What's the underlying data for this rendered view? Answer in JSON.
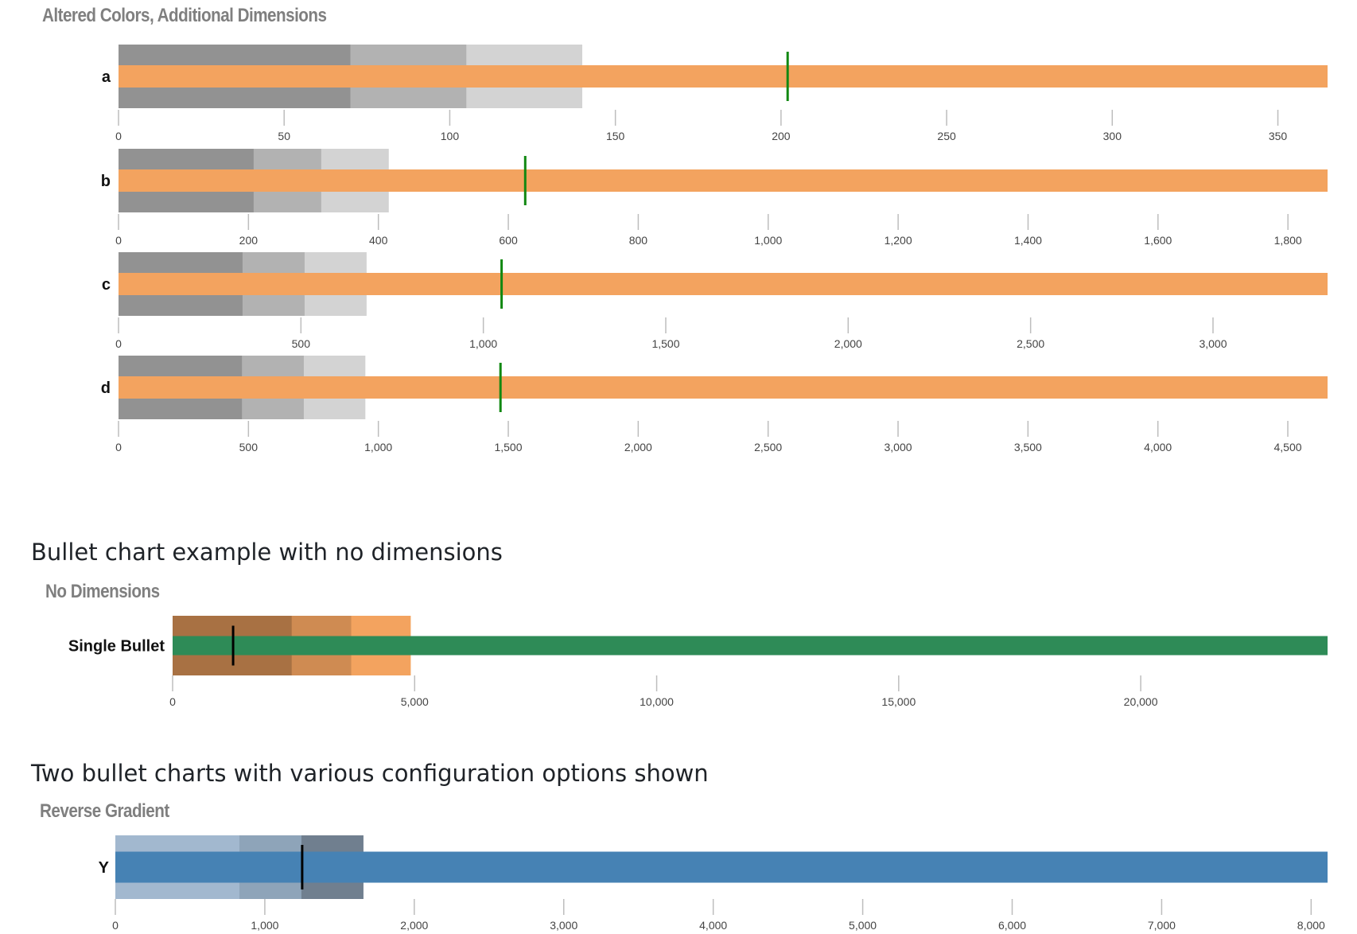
{
  "headings": {
    "no_dimensions": "Bullet chart example with no dimensions",
    "configuration": "Two bullet charts with various configuration options shown"
  },
  "chart_data": [
    {
      "type": "bullet",
      "title": "Altered Colors, Additional Dimensions",
      "colors": {
        "ranges": [
          "#929292",
          "#b2b2b2",
          "#d3d3d3"
        ],
        "measure": "#f3a35f",
        "marker": "#118811"
      },
      "rows": [
        {
          "label": "a",
          "ranges": [
            70,
            105,
            140
          ],
          "measure": 365,
          "marker": 202,
          "ticks": [
            0,
            50,
            100,
            150,
            200,
            250,
            300,
            350
          ],
          "tick_labels": [
            "0",
            "50",
            "100",
            "150",
            "200",
            "250",
            "300",
            "350"
          ],
          "xmax": 365
        },
        {
          "label": "b",
          "ranges": [
            208,
            312,
            416
          ],
          "measure": 1861,
          "marker": 626,
          "ticks": [
            0,
            200,
            400,
            600,
            800,
            1000,
            1200,
            1400,
            1600,
            1800
          ],
          "tick_labels": [
            "0",
            "200",
            "400",
            "600",
            "800",
            "1,000",
            "1,200",
            "1,400",
            "1,600",
            "1,800"
          ],
          "xmax": 1861
        },
        {
          "label": "c",
          "ranges": [
            340,
            510,
            680
          ],
          "measure": 3314,
          "marker": 1050,
          "ticks": [
            0,
            500,
            1000,
            1500,
            2000,
            2500,
            3000
          ],
          "tick_labels": [
            "0",
            "500",
            "1,000",
            "1,500",
            "2,000",
            "2,500",
            "3,000"
          ],
          "xmax": 3314
        },
        {
          "label": "d",
          "ranges": [
            475,
            713,
            950
          ],
          "measure": 4653,
          "marker": 1470,
          "ticks": [
            0,
            500,
            1000,
            1500,
            2000,
            2500,
            3000,
            3500,
            4000,
            4500
          ],
          "tick_labels": [
            "0",
            "500",
            "1,000",
            "1,500",
            "2,000",
            "2,500",
            "3,000",
            "3,500",
            "4,000",
            "4,500"
          ],
          "xmax": 4653
        }
      ]
    },
    {
      "type": "bullet",
      "title": "No Dimensions",
      "colors": {
        "ranges": [
          "#a87143",
          "#cf8b52",
          "#f3a35f"
        ],
        "measure": "#2e8b57",
        "marker": "#000000"
      },
      "rows": [
        {
          "label": "Single Bullet",
          "ranges": [
            2460,
            3690,
            4920
          ],
          "measure": 23860,
          "marker": 1250,
          "ticks": [
            0,
            5000,
            10000,
            15000,
            20000
          ],
          "tick_labels": [
            "0",
            "5,000",
            "10,000",
            "15,000",
            "20,000"
          ],
          "xmax": 23860
        }
      ]
    },
    {
      "type": "bullet",
      "title": "Reverse Gradient",
      "colors": {
        "ranges": [
          "#a2b8cf",
          "#8ea4b9",
          "#707f8f"
        ],
        "measure": "#4682b4",
        "marker": "#000000"
      },
      "rows": [
        {
          "label": "Y",
          "ranges": [
            830,
            1245,
            1660
          ],
          "measure": 8110,
          "marker": 1250,
          "ticks": [
            0,
            1000,
            2000,
            3000,
            4000,
            5000,
            6000,
            7000,
            8000
          ],
          "tick_labels": [
            "0",
            "1,000",
            "2,000",
            "3,000",
            "4,000",
            "5,000",
            "6,000",
            "7,000",
            "8,000"
          ],
          "xmax": 8110
        }
      ]
    }
  ]
}
